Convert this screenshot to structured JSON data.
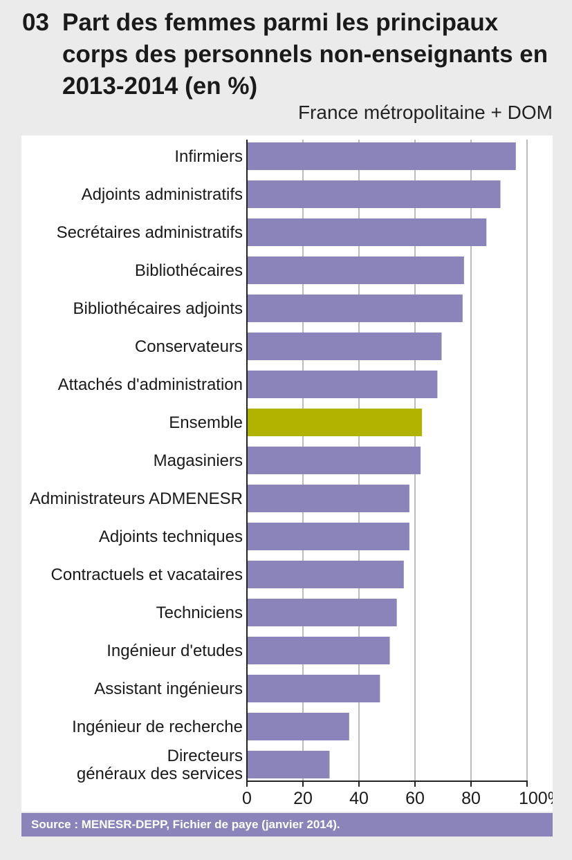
{
  "figure": {
    "number": "03",
    "title": "Part des femmes parmi les principaux corps des personnels non-enseignants en 2013-2014 (en %)",
    "scope": "France métropolitaine + DOM",
    "source": "Source : MENESR-DEPP, Fichier de paye (janvier 2014)."
  },
  "colors": {
    "bar": "#8a84ba",
    "highlight": "#b0b400",
    "grid": "#777777",
    "axis": "#222222",
    "panel": "#ffffff",
    "background": "#ebebeb"
  },
  "chart_data": {
    "type": "bar",
    "orientation": "horizontal",
    "categories": [
      "Infirmiers",
      "Adjoints administratifs",
      "Secrétaires administratifs",
      "Bibliothécaires",
      "Bibliothécaires adjoints",
      "Conservateurs",
      "Attachés d'administration",
      "Ensemble",
      "Magasiniers",
      "Administrateurs ADMENESR",
      "Adjoints techniques",
      "Contractuels et vacataires",
      "Techniciens",
      "Ingénieur d'etudes",
      "Assistant ingénieurs",
      "Ingénieur de recherche",
      "Directeurs\ngénéraux des services"
    ],
    "values": [
      96,
      90.5,
      85.5,
      77.5,
      77,
      69.5,
      68,
      62.5,
      62,
      58,
      58,
      56,
      53.5,
      51,
      47.5,
      36.5,
      29.5
    ],
    "highlight": "Ensemble",
    "xlim": [
      0,
      100
    ],
    "xticks": [
      0,
      20,
      40,
      60,
      80,
      100
    ],
    "xtick_labels": [
      "0",
      "20",
      "40",
      "60",
      "80",
      "100%"
    ],
    "grid": true,
    "title": "Part des femmes parmi les principaux corps des personnels non-enseignants en 2013-2014 (en %)",
    "xlabel": "",
    "ylabel": ""
  }
}
